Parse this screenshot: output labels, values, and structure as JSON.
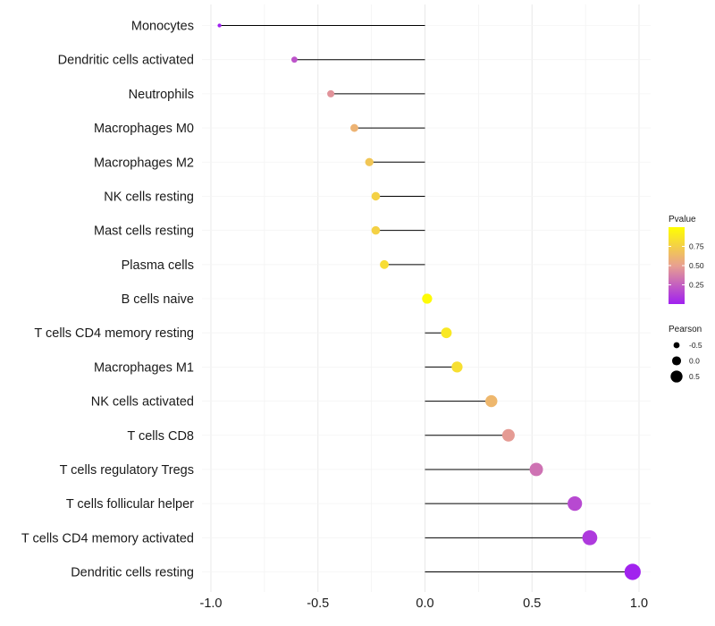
{
  "chart_data": {
    "type": "lollipop",
    "categories": [
      "Monocytes",
      "Dendritic cells activated",
      "Neutrophils",
      "Macrophages M0",
      "Macrophages M2",
      "NK cells resting",
      "Mast cells resting",
      "Plasma cells",
      "B cells naive",
      "T cells CD4 memory resting",
      "Macrophages M1",
      "NK cells activated",
      "T cells CD8",
      "T cells regulatory  Tregs ",
      "T cells follicular helper",
      "T cells CD4 memory activated",
      "Dendritic cells resting"
    ],
    "pearson": [
      -0.96,
      -0.61,
      -0.44,
      -0.33,
      -0.26,
      -0.23,
      -0.23,
      -0.19,
      0.01,
      0.1,
      0.15,
      0.31,
      0.39,
      0.52,
      0.7,
      0.77,
      0.97
    ],
    "pvalue": [
      0.0,
      0.2,
      0.45,
      0.6,
      0.7,
      0.76,
      0.76,
      0.82,
      0.98,
      0.88,
      0.83,
      0.62,
      0.48,
      0.32,
      0.16,
      0.1,
      0.01
    ],
    "xlim": [
      -1.0,
      1.0
    ],
    "xticks": [
      -1.0,
      -0.5,
      0.0,
      0.5,
      1.0
    ],
    "xtick_labels": [
      "-1.0",
      "-0.5",
      "0.0",
      "0.5",
      "1.0"
    ],
    "grid": true,
    "legend_pvalue": {
      "title": "Pvalue",
      "ticks": [
        0.75,
        0.5,
        0.25
      ],
      "tick_labels": [
        "0.75",
        "0.50",
        "0.25"
      ],
      "range": [
        0.0,
        1.0
      ],
      "color_low": "#a020f0",
      "color_mid": "#e8a090",
      "color_high": "#ffff00"
    },
    "legend_pearson": {
      "title": "Pearson",
      "values": [
        -0.5,
        0.0,
        0.5
      ],
      "labels": [
        "-0.5",
        "0.0",
        "0.5"
      ]
    }
  }
}
